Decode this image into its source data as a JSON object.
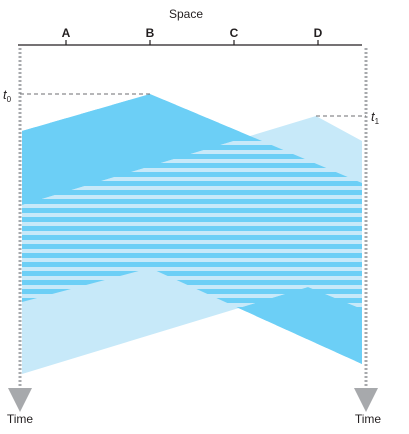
{
  "diagram": {
    "space_label": "Space",
    "nodes": [
      "A",
      "B",
      "C",
      "D"
    ],
    "time_label_left": "Time",
    "time_label_right": "Time",
    "t0": {
      "letter": "t",
      "sub": "0"
    },
    "t1": {
      "letter": "t",
      "sub": "1"
    },
    "colors": {
      "signal_b": "#6ccff6",
      "signal_d": "#c7e9f9",
      "axis": "#231f20",
      "dashed": "#6d6e71",
      "time_arrow": "#a7a9ac"
    }
  }
}
